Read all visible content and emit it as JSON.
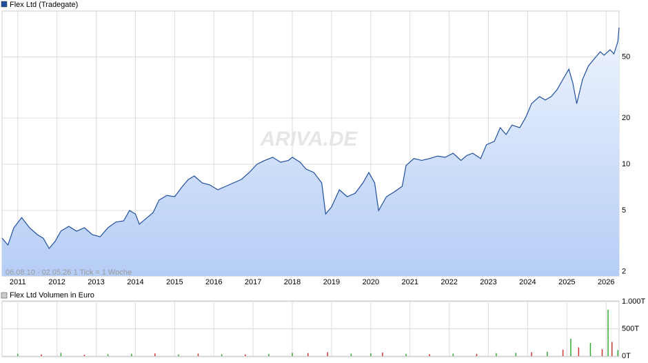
{
  "chart_data": [
    {
      "type": "line",
      "title": "Flex Ltd (Tradegate)",
      "subtitle": "06.08.10 - 02.05.26   1 Tick = 1 Woche",
      "watermark": "ARIVA.DE",
      "log_scale": true,
      "grid": true,
      "color": "#1f4e9c",
      "x": [
        2010.6,
        2010.75,
        2010.9,
        2011.1,
        2011.3,
        2011.5,
        2011.65,
        2011.8,
        2011.95,
        2012.1,
        2012.3,
        2012.5,
        2012.7,
        2012.9,
        2013.1,
        2013.3,
        2013.5,
        2013.7,
        2013.85,
        2014.0,
        2014.1,
        2014.3,
        2014.45,
        2014.6,
        2014.8,
        2015.0,
        2015.2,
        2015.35,
        2015.5,
        2015.7,
        2015.9,
        2016.1,
        2016.3,
        2016.5,
        2016.7,
        2016.9,
        2017.1,
        2017.3,
        2017.5,
        2017.7,
        2017.9,
        2018.0,
        2018.2,
        2018.35,
        2018.55,
        2018.75,
        2018.85,
        2019.0,
        2019.2,
        2019.4,
        2019.6,
        2019.8,
        2019.95,
        2020.1,
        2020.2,
        2020.4,
        2020.6,
        2020.8,
        2020.9,
        2021.1,
        2021.3,
        2021.5,
        2021.7,
        2021.9,
        2022.1,
        2022.3,
        2022.45,
        2022.6,
        2022.8,
        2022.95,
        2023.15,
        2023.3,
        2023.45,
        2023.6,
        2023.8,
        2023.95,
        2024.1,
        2024.3,
        2024.45,
        2024.6,
        2024.75,
        2024.9,
        2025.05,
        2025.15,
        2025.25,
        2025.4,
        2025.55,
        2025.7,
        2025.85,
        2025.95,
        2026.1,
        2026.2,
        2026.3,
        2026.33
      ],
      "series": [
        {
          "name": "Flex Ltd",
          "color": "#1f4e9c",
          "values": [
            3.3,
            2.98,
            3.86,
            4.5,
            3.86,
            3.48,
            3.3,
            2.83,
            3.14,
            3.67,
            3.94,
            3.67,
            3.86,
            3.48,
            3.37,
            3.86,
            4.2,
            4.28,
            5.0,
            4.74,
            4.07,
            4.5,
            4.84,
            5.84,
            6.27,
            6.15,
            7.18,
            7.96,
            8.39,
            7.56,
            7.33,
            6.82,
            7.18,
            7.56,
            7.96,
            8.83,
            10,
            10.6,
            11.1,
            10.3,
            10.6,
            11.1,
            10.3,
            9.3,
            8.83,
            7.56,
            4.74,
            5.27,
            6.82,
            6.15,
            6.47,
            7.56,
            8.83,
            7.56,
            5.0,
            6.15,
            6.61,
            7.18,
            9.8,
            10.9,
            10.6,
            10.9,
            11.3,
            11.1,
            11.8,
            10.6,
            11.4,
            11.8,
            10.9,
            13.4,
            14.1,
            17.3,
            15.6,
            18.0,
            17.3,
            20.2,
            24.8,
            27.6,
            26.2,
            27.6,
            30.6,
            35.7,
            41.6,
            33.9,
            24.8,
            35.7,
            43.7,
            48.7,
            54.0,
            51.3,
            55.7,
            52.4,
            63.0,
            77.5
          ]
        }
      ],
      "xlim": [
        2010.6,
        2026.33
      ],
      "xticks": [
        2011,
        2012,
        2013,
        2014,
        2015,
        2016,
        2017,
        2018,
        2019,
        2020,
        2021,
        2022,
        2023,
        2024,
        2025,
        2026
      ],
      "ylim": [
        1.87,
        99.5
      ],
      "yticks": [
        2,
        5,
        10,
        20,
        50
      ]
    },
    {
      "type": "bar",
      "title": "Flex Ltd Volumen in Euro",
      "grid": true,
      "x": [
        2011.0,
        2011.6,
        2012.1,
        2012.7,
        2013.3,
        2013.9,
        2014.5,
        2015.1,
        2015.6,
        2016.2,
        2016.8,
        2017.4,
        2018.0,
        2018.4,
        2018.9,
        2019.5,
        2020.0,
        2020.3,
        2020.9,
        2021.5,
        2022.1,
        2022.7,
        2023.2,
        2023.7,
        2024.1,
        2024.5,
        2024.9,
        2025.1,
        2025.3,
        2025.6,
        2025.9,
        2026.05,
        2026.15,
        2026.3
      ],
      "values": [
        40,
        30,
        60,
        25,
        35,
        40,
        50,
        30,
        45,
        35,
        30,
        40,
        60,
        55,
        70,
        45,
        50,
        65,
        40,
        35,
        45,
        40,
        55,
        60,
        70,
        80,
        120,
        320,
        160,
        240,
        130,
        850,
        260,
        110
      ],
      "colors": [
        "#33aa33",
        "#cc3333",
        "#33aa33",
        "#cc3333",
        "#33aa33",
        "#33aa33",
        "#cc3333",
        "#33aa33",
        "#cc3333",
        "#33aa33",
        "#cc3333",
        "#33aa33",
        "#33aa33",
        "#cc3333",
        "#cc3333",
        "#33aa33",
        "#33aa33",
        "#cc3333",
        "#33aa33",
        "#cc3333",
        "#33aa33",
        "#cc3333",
        "#33aa33",
        "#33aa33",
        "#cc3333",
        "#33aa33",
        "#cc3333",
        "#33aa33",
        "#cc3333",
        "#33aa33",
        "#cc3333",
        "#33aa33",
        "#cc3333",
        "#33aa33"
      ],
      "xlim": [
        2010.6,
        2026.33
      ],
      "ylim": [
        0,
        1000
      ],
      "yticks": [
        {
          "value": 0,
          "label": "0T"
        },
        {
          "value": 500,
          "label": "500T"
        },
        {
          "value": 1000,
          "label": "1.000T"
        }
      ]
    }
  ]
}
